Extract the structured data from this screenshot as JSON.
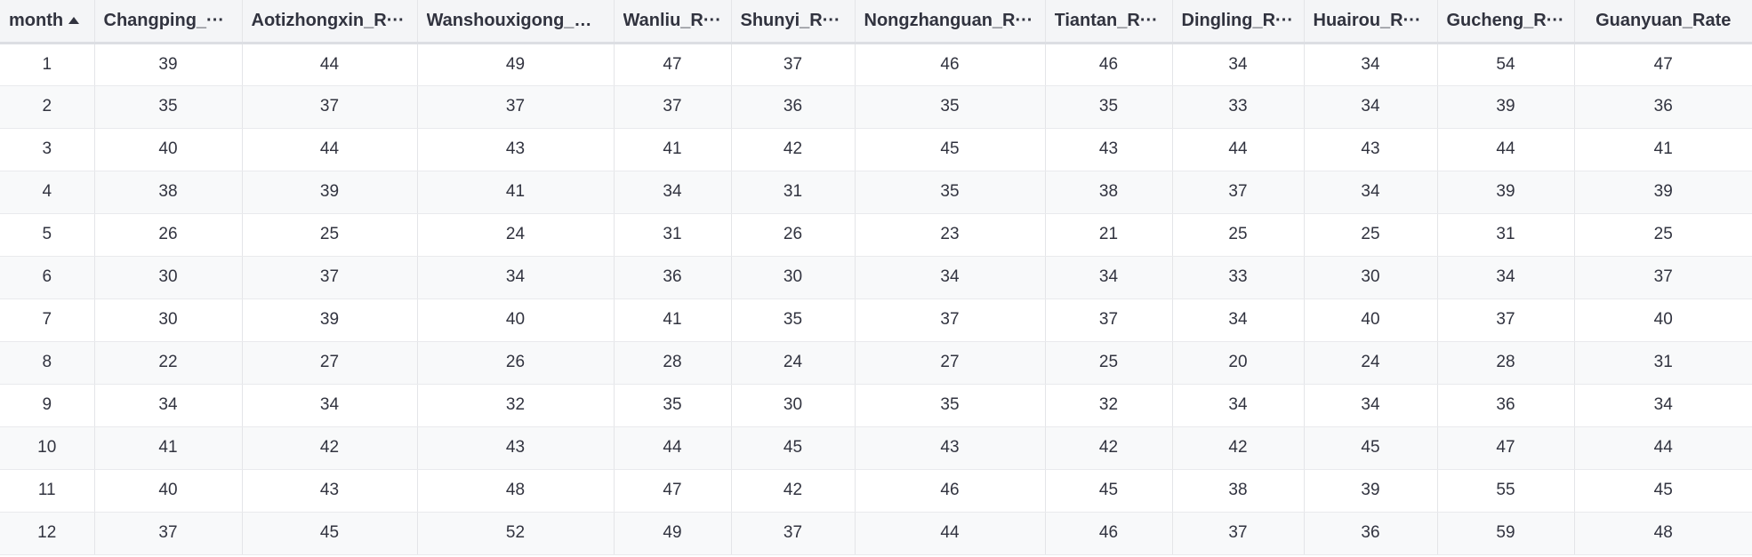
{
  "columns": [
    {
      "label": "month",
      "sorted": "asc"
    },
    {
      "label": "Changping_···"
    },
    {
      "label": "Aotizhongxin_R···"
    },
    {
      "label": "Wanshouxigong_R···"
    },
    {
      "label": "Wanliu_R···"
    },
    {
      "label": "Shunyi_R···"
    },
    {
      "label": "Nongzhanguan_R···"
    },
    {
      "label": "Tiantan_R···"
    },
    {
      "label": "Dingling_R···"
    },
    {
      "label": "Huairou_R···"
    },
    {
      "label": "Gucheng_R···"
    },
    {
      "label": "Guanyuan_Rate"
    }
  ],
  "rows": [
    [
      "1",
      "39",
      "44",
      "49",
      "47",
      "37",
      "46",
      "46",
      "34",
      "34",
      "54",
      "47"
    ],
    [
      "2",
      "35",
      "37",
      "37",
      "37",
      "36",
      "35",
      "35",
      "33",
      "34",
      "39",
      "36"
    ],
    [
      "3",
      "40",
      "44",
      "43",
      "41",
      "42",
      "45",
      "43",
      "44",
      "43",
      "44",
      "41"
    ],
    [
      "4",
      "38",
      "39",
      "41",
      "34",
      "31",
      "35",
      "38",
      "37",
      "34",
      "39",
      "39"
    ],
    [
      "5",
      "26",
      "25",
      "24",
      "31",
      "26",
      "23",
      "21",
      "25",
      "25",
      "31",
      "25"
    ],
    [
      "6",
      "30",
      "37",
      "34",
      "36",
      "30",
      "34",
      "34",
      "33",
      "30",
      "34",
      "37"
    ],
    [
      "7",
      "30",
      "39",
      "40",
      "41",
      "35",
      "37",
      "37",
      "34",
      "40",
      "37",
      "40"
    ],
    [
      "8",
      "22",
      "27",
      "26",
      "28",
      "24",
      "27",
      "25",
      "20",
      "24",
      "28",
      "31"
    ],
    [
      "9",
      "34",
      "34",
      "32",
      "35",
      "30",
      "35",
      "32",
      "34",
      "34",
      "36",
      "34"
    ],
    [
      "10",
      "41",
      "42",
      "43",
      "44",
      "45",
      "43",
      "42",
      "42",
      "45",
      "47",
      "44"
    ],
    [
      "11",
      "40",
      "43",
      "48",
      "47",
      "42",
      "46",
      "45",
      "38",
      "39",
      "55",
      "45"
    ],
    [
      "12",
      "37",
      "45",
      "52",
      "49",
      "37",
      "44",
      "46",
      "37",
      "36",
      "59",
      "48"
    ]
  ]
}
